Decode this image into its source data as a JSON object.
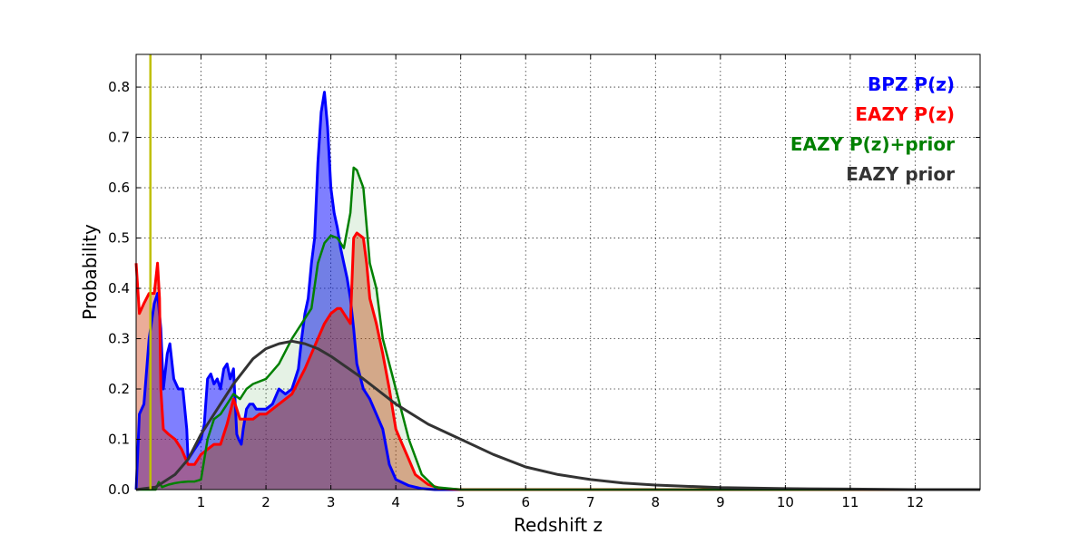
{
  "chart_data": {
    "type": "area",
    "xlabel": "Redshift z",
    "ylabel": "Probability",
    "xlim": [
      0,
      13
    ],
    "ylim": [
      0,
      0.865
    ],
    "xticks": [
      1,
      2,
      3,
      4,
      5,
      6,
      7,
      8,
      9,
      10,
      11,
      12
    ],
    "yticks": [
      0.0,
      0.1,
      0.2,
      0.3,
      0.4,
      0.5,
      0.6,
      0.7,
      0.8
    ],
    "grid": true,
    "legend_position": "top-right",
    "marker_line": {
      "z": 0.22,
      "color": "#bfbf00"
    },
    "series": [
      {
        "name": "BPZ P(z)",
        "color": "#0000ff",
        "fill": "#0000ff",
        "fill_opacity": 0.5,
        "line_width": 3,
        "x": [
          0,
          0.05,
          0.12,
          0.2,
          0.28,
          0.33,
          0.38,
          0.42,
          0.48,
          0.52,
          0.58,
          0.65,
          0.72,
          0.78,
          0.8,
          0.85,
          0.9,
          0.95,
          1.0,
          1.05,
          1.1,
          1.15,
          1.2,
          1.25,
          1.3,
          1.35,
          1.4,
          1.45,
          1.5,
          1.55,
          1.58,
          1.62,
          1.65,
          1.7,
          1.75,
          1.8,
          1.85,
          1.9,
          2.0,
          2.1,
          2.2,
          2.3,
          2.4,
          2.45,
          2.5,
          2.55,
          2.6,
          2.65,
          2.7,
          2.75,
          2.8,
          2.85,
          2.9,
          2.95,
          3.0,
          3.05,
          3.1,
          3.15,
          3.2,
          3.25,
          3.3,
          3.35,
          3.4,
          3.5,
          3.6,
          3.7,
          3.8,
          3.9,
          4.0,
          4.2,
          4.4,
          4.6,
          4.8,
          5.0,
          13.0
        ],
        "y": [
          0.0,
          0.15,
          0.17,
          0.3,
          0.37,
          0.39,
          0.32,
          0.2,
          0.27,
          0.29,
          0.22,
          0.2,
          0.2,
          0.12,
          0.06,
          0.07,
          0.08,
          0.09,
          0.1,
          0.13,
          0.22,
          0.23,
          0.21,
          0.22,
          0.2,
          0.24,
          0.25,
          0.22,
          0.24,
          0.11,
          0.1,
          0.09,
          0.12,
          0.16,
          0.17,
          0.17,
          0.16,
          0.16,
          0.16,
          0.17,
          0.2,
          0.19,
          0.2,
          0.22,
          0.24,
          0.3,
          0.35,
          0.38,
          0.45,
          0.5,
          0.65,
          0.75,
          0.79,
          0.72,
          0.6,
          0.55,
          0.52,
          0.48,
          0.45,
          0.42,
          0.38,
          0.32,
          0.25,
          0.2,
          0.18,
          0.15,
          0.12,
          0.05,
          0.02,
          0.008,
          0.002,
          0.0,
          0.0,
          0.0,
          0.0
        ]
      },
      {
        "name": "EAZY P(z)",
        "color": "#ff0000",
        "fill": "#cc3300",
        "fill_opacity": 0.4,
        "line_width": 3,
        "x": [
          0,
          0.05,
          0.12,
          0.2,
          0.28,
          0.33,
          0.36,
          0.38,
          0.42,
          0.5,
          0.6,
          0.7,
          0.8,
          0.9,
          1.0,
          1.1,
          1.2,
          1.3,
          1.4,
          1.5,
          1.6,
          1.7,
          1.8,
          1.9,
          2.0,
          2.2,
          2.4,
          2.6,
          2.8,
          2.9,
          3.0,
          3.1,
          3.15,
          3.2,
          3.3,
          3.35,
          3.4,
          3.5,
          3.55,
          3.6,
          3.7,
          3.8,
          3.9,
          4.0,
          4.1,
          4.2,
          4.3,
          4.5,
          4.7,
          5.0,
          13.0
        ],
        "y": [
          0.45,
          0.35,
          0.37,
          0.39,
          0.39,
          0.45,
          0.38,
          0.2,
          0.12,
          0.11,
          0.1,
          0.08,
          0.05,
          0.05,
          0.07,
          0.08,
          0.09,
          0.09,
          0.13,
          0.18,
          0.14,
          0.14,
          0.14,
          0.15,
          0.15,
          0.17,
          0.19,
          0.24,
          0.3,
          0.33,
          0.35,
          0.36,
          0.36,
          0.35,
          0.33,
          0.5,
          0.51,
          0.5,
          0.45,
          0.38,
          0.33,
          0.27,
          0.2,
          0.12,
          0.09,
          0.06,
          0.03,
          0.01,
          0.002,
          0.0,
          0.0
        ]
      },
      {
        "name": "EAZY P(z)+prior",
        "color": "#008000",
        "fill": "#008000",
        "fill_opacity": 0.1,
        "line_width": 2.5,
        "x": [
          0,
          0.2,
          0.3,
          0.35,
          0.4,
          0.5,
          0.6,
          0.7,
          0.8,
          0.9,
          1.0,
          1.1,
          1.2,
          1.3,
          1.4,
          1.5,
          1.6,
          1.7,
          1.8,
          2.0,
          2.2,
          2.4,
          2.6,
          2.7,
          2.8,
          2.9,
          3.0,
          3.1,
          3.2,
          3.3,
          3.35,
          3.4,
          3.5,
          3.6,
          3.7,
          3.8,
          3.9,
          4.0,
          4.2,
          4.4,
          4.6,
          5.0,
          13.0
        ],
        "y": [
          0.0,
          0.0,
          0.0,
          0.015,
          0.005,
          0.01,
          0.013,
          0.015,
          0.016,
          0.016,
          0.02,
          0.1,
          0.14,
          0.15,
          0.17,
          0.19,
          0.18,
          0.2,
          0.21,
          0.22,
          0.25,
          0.3,
          0.34,
          0.36,
          0.45,
          0.49,
          0.505,
          0.5,
          0.48,
          0.55,
          0.64,
          0.635,
          0.6,
          0.45,
          0.4,
          0.3,
          0.25,
          0.2,
          0.1,
          0.03,
          0.005,
          0.0,
          0.0
        ]
      },
      {
        "name": "EAZY prior",
        "color": "#333333",
        "fill": "none",
        "fill_opacity": 0,
        "line_width": 3,
        "x": [
          0,
          0.3,
          0.6,
          0.8,
          1.0,
          1.2,
          1.5,
          1.8,
          2.0,
          2.2,
          2.4,
          2.6,
          2.8,
          3.0,
          3.5,
          4.0,
          4.5,
          5.0,
          5.5,
          6.0,
          6.5,
          7.0,
          7.5,
          8.0,
          9.0,
          10.0,
          11.0,
          12.0,
          13.0
        ],
        "y": [
          0.0,
          0.005,
          0.03,
          0.06,
          0.11,
          0.15,
          0.21,
          0.26,
          0.28,
          0.29,
          0.295,
          0.29,
          0.28,
          0.265,
          0.22,
          0.17,
          0.13,
          0.1,
          0.07,
          0.045,
          0.03,
          0.02,
          0.013,
          0.009,
          0.004,
          0.002,
          0.001,
          0.0,
          0.0
        ]
      }
    ]
  }
}
